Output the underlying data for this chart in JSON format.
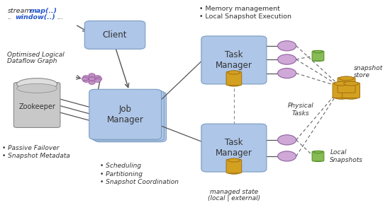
{
  "bg_color": "#ffffff",
  "box_color": "#aec6e8",
  "box_edge": "#7a9cbf",
  "purple_circle": "#d0a8d8",
  "purple_edge": "#9060a0",
  "green_cyl": "#88bb55",
  "green_edge": "#4a8a20",
  "gold_cyl": "#d4a020",
  "gold_edge": "#a07010",
  "arrow_color": "#555555",
  "text_color": "#333333",
  "blue_text": "#2255cc",
  "zk_bullets": [
    "• Passive Failover",
    "• Snapshot Metadata"
  ],
  "jm_bullets": [
    "• Scheduling",
    "• Partitioning",
    "• Snapshot Coordination"
  ],
  "tr_bullets": [
    "• Memory management",
    "• Local Snapshot Execution"
  ],
  "physical_label": "Physical\nTasks",
  "ss_label": "snapshot\nstore",
  "ls_label": "Local\nSnapshots",
  "ms_label1": "managed state",
  "ms_label2": "(local | external)"
}
